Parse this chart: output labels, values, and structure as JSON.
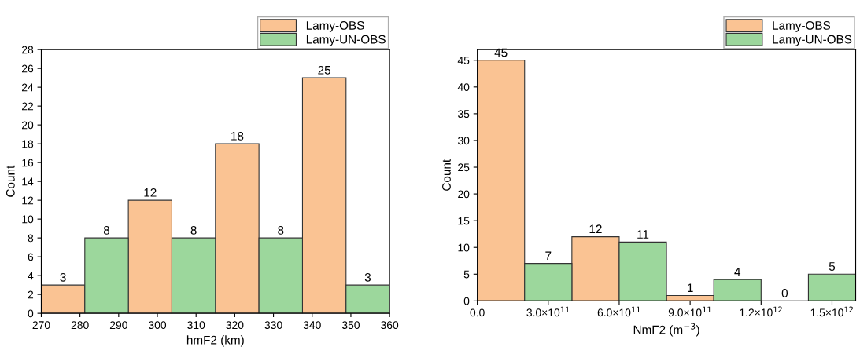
{
  "chart_data": [
    {
      "type": "histogram",
      "xlabel": "hmF2 (km)",
      "ylabel": "Count",
      "bins": [
        270,
        281.25,
        292.5,
        303.75,
        315,
        326.25,
        337.5,
        348.75,
        360
      ],
      "series": [
        {
          "name": "Lamy-OBS",
          "color": "#fac393",
          "values": [
            3,
            null,
            12,
            null,
            18,
            null,
            25,
            null
          ]
        },
        {
          "name": "Lamy-UN-OBS",
          "color": "#9cd79c",
          "values": [
            null,
            8,
            null,
            8,
            null,
            8,
            null,
            3
          ]
        }
      ],
      "xlim": [
        270,
        360
      ],
      "xticks": [
        270,
        280,
        290,
        300,
        310,
        320,
        330,
        340,
        350,
        360
      ],
      "ylim": [
        0,
        28
      ],
      "yticks": [
        0,
        2,
        4,
        6,
        8,
        10,
        12,
        14,
        16,
        18,
        20,
        22,
        24,
        26,
        28
      ],
      "data_labels": true,
      "legend": "top right",
      "grid": false
    },
    {
      "type": "histogram",
      "xlabel": "NmF2 (m$^{−3}$)",
      "ylabel": "Count",
      "bins": [
        0,
        200000000000.0,
        400000000000.0,
        600000000000.0,
        800000000000.0,
        1000000000000.0,
        1200000000000.0,
        1400000000000.0,
        1600000000000.0
      ],
      "series": [
        {
          "name": "Lamy-OBS",
          "color": "#fac393",
          "values": [
            45,
            null,
            12,
            null,
            1,
            null,
            0,
            null
          ]
        },
        {
          "name": "Lamy-UN-OBS",
          "color": "#9cd79c",
          "values": [
            null,
            7,
            null,
            11,
            null,
            4,
            null,
            5
          ]
        }
      ],
      "xlim": [
        0,
        1600000000000.0
      ],
      "xticks": [
        {
          "value": 0,
          "label": "0.0"
        },
        {
          "value": 300000000000.0,
          "label": "3.0×10$^{11}$"
        },
        {
          "value": 600000000000.0,
          "label": "6.0×10$^{11}$"
        },
        {
          "value": 900000000000.0,
          "label": "9.0×10$^{11}$"
        },
        {
          "value": 1200000000000.0,
          "label": "1.2×10$^{12}$"
        },
        {
          "value": 1500000000000.0,
          "label": "1.5×10$^{12}$"
        }
      ],
      "ylim": [
        0,
        47
      ],
      "yticks": [
        0,
        5,
        10,
        15,
        20,
        25,
        30,
        35,
        40,
        45
      ],
      "data_labels": true,
      "legend": "top right",
      "grid": false
    }
  ]
}
